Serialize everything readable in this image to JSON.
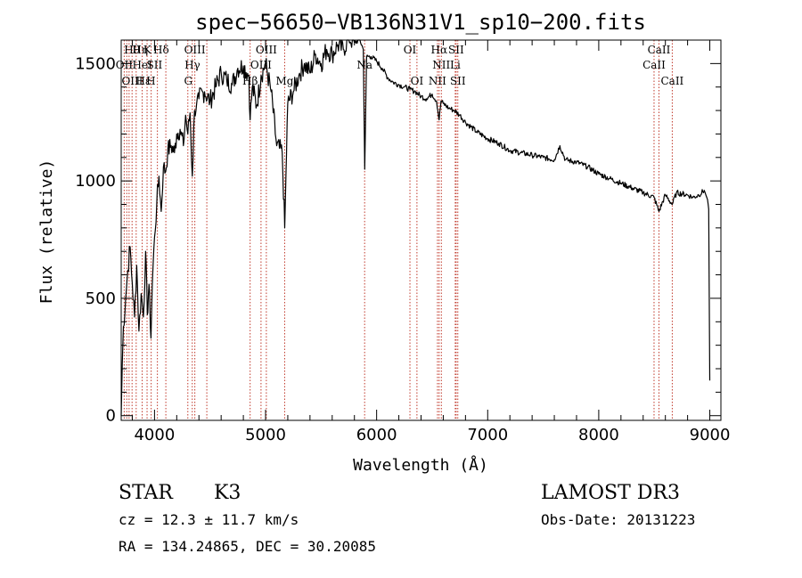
{
  "chart_data": {
    "type": "line",
    "title": "spec−56650−VB136N31V1_sp10−200.fits",
    "xlabel": "Wavelength (Å)",
    "ylabel": "Flux (relative)",
    "xlim": [
      3700,
      9100
    ],
    "ylim": [
      -20,
      1600
    ],
    "xticks": [
      4000,
      5000,
      6000,
      7000,
      8000,
      9000
    ],
    "yticks": [
      0,
      500,
      1000,
      1500
    ],
    "grid": false,
    "series": [
      {
        "name": "spectrum",
        "x": [
          3700,
          3710,
          3720,
          3740,
          3760,
          3780,
          3800,
          3820,
          3840,
          3860,
          3880,
          3900,
          3920,
          3935,
          3950,
          3968,
          3980,
          4000,
          4020,
          4040,
          4060,
          4080,
          4100,
          4120,
          4150,
          4180,
          4200,
          4230,
          4260,
          4280,
          4300,
          4320,
          4340,
          4360,
          4380,
          4400,
          4450,
          4500,
          4550,
          4600,
          4650,
          4700,
          4750,
          4800,
          4850,
          4861,
          4880,
          4920,
          4960,
          5000,
          5050,
          5100,
          5150,
          5172,
          5200,
          5250,
          5300,
          5350,
          5400,
          5450,
          5500,
          5550,
          5600,
          5650,
          5700,
          5750,
          5800,
          5850,
          5880,
          5893,
          5910,
          5950,
          6000,
          6050,
          6100,
          6150,
          6200,
          6250,
          6300,
          6350,
          6400,
          6450,
          6500,
          6540,
          6563,
          6580,
          6600,
          6650,
          6700,
          6750,
          6800,
          6900,
          7000,
          7100,
          7200,
          7300,
          7400,
          7500,
          7600,
          7650,
          7700,
          7800,
          7900,
          8000,
          8100,
          8200,
          8300,
          8400,
          8498,
          8542,
          8600,
          8662,
          8700,
          8800,
          8850,
          8900,
          8950,
          8980,
          8990,
          9000
        ],
        "values": [
          0,
          220,
          380,
          500,
          620,
          720,
          560,
          420,
          640,
          360,
          520,
          420,
          700,
          430,
          560,
          330,
          560,
          760,
          900,
          1020,
          870,
          1060,
          1040,
          1130,
          1150,
          1120,
          1200,
          1220,
          1150,
          1280,
          1200,
          1290,
          1020,
          1300,
          1330,
          1350,
          1380,
          1340,
          1400,
          1460,
          1430,
          1410,
          1480,
          1490,
          1450,
          1260,
          1400,
          1320,
          1450,
          1500,
          1380,
          1150,
          1120,
          800,
          1330,
          1380,
          1450,
          1500,
          1460,
          1540,
          1500,
          1560,
          1540,
          1580,
          1560,
          1610,
          1590,
          1600,
          1560,
          1050,
          1530,
          1530,
          1510,
          1480,
          1440,
          1420,
          1410,
          1400,
          1390,
          1380,
          1360,
          1350,
          1370,
          1340,
          1260,
          1340,
          1330,
          1310,
          1300,
          1280,
          1250,
          1210,
          1180,
          1160,
          1130,
          1120,
          1110,
          1100,
          1090,
          1150,
          1090,
          1080,
          1060,
          1030,
          1010,
          990,
          970,
          950,
          930,
          870,
          940,
          900,
          950,
          940,
          930,
          940,
          960,
          920,
          880,
          150
        ]
      }
    ],
    "line_markers": [
      3727,
      3750,
      3771,
      3798,
      3835,
      3889,
      3933,
      3970,
      4026,
      4102,
      4300,
      4340,
      4363,
      4471,
      4861,
      4959,
      5007,
      5172,
      5892,
      6300,
      6363,
      6548,
      6563,
      6583,
      6708,
      6716,
      6731,
      8498,
      8542,
      8662
    ],
    "line_labels": {
      "row1": [
        {
          "x": 3797,
          "t": "Hθ"
        },
        {
          "x": 3870,
          "t": "Hη"
        },
        {
          "x": 3935,
          "t": "K"
        },
        {
          "x": 4060,
          "t": "Hδ"
        },
        {
          "x": 4363,
          "t": "OIII"
        },
        {
          "x": 5007,
          "t": "OIII"
        },
        {
          "x": 6300,
          "t": "OI"
        },
        {
          "x": 6563,
          "t": "Hα"
        },
        {
          "x": 6716,
          "t": "SII"
        },
        {
          "x": 8542,
          "t": "CaII"
        }
      ],
      "row2": [
        {
          "x": 3727,
          "t": "OII"
        },
        {
          "x": 3889,
          "t": "HeI"
        },
        {
          "x": 4000,
          "t": "SII"
        },
        {
          "x": 4341,
          "t": "Hγ"
        },
        {
          "x": 4959,
          "t": "OIII"
        },
        {
          "x": 5892,
          "t": "Na"
        },
        {
          "x": 6583,
          "t": "NII"
        },
        {
          "x": 6708,
          "t": "Li"
        },
        {
          "x": 8498,
          "t": "CaII"
        }
      ],
      "row3": [
        {
          "x": 3800,
          "t": "OIII"
        },
        {
          "x": 3900,
          "t": "Hε"
        },
        {
          "x": 3968,
          "t": "H"
        },
        {
          "x": 4304,
          "t": "G"
        },
        {
          "x": 4861,
          "t": "Hβ"
        },
        {
          "x": 5172,
          "t": "Mg"
        },
        {
          "x": 6363,
          "t": "OI"
        },
        {
          "x": 6548,
          "t": "NII"
        },
        {
          "x": 6731,
          "t": "SII"
        },
        {
          "x": 8662,
          "t": "CaII"
        }
      ]
    }
  },
  "info": {
    "class_label": "STAR",
    "subclass": "K3",
    "survey": "LAMOST DR3",
    "cz_text": "cz = 12.3 ± 11.7 km/s",
    "obs_date_text": "Obs-Date: 20131223",
    "radec_text": "RA = 134.24865, DEC =  30.20085"
  }
}
